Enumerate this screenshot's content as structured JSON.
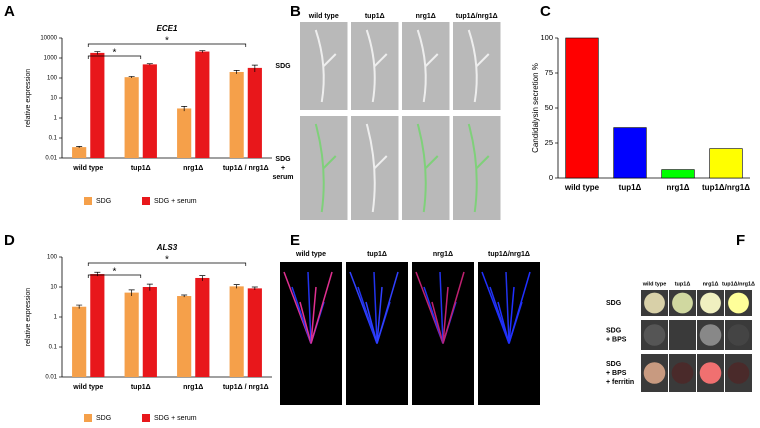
{
  "chart_data": [
    {
      "type": "bar",
      "panel": "A",
      "title": "ECE1",
      "ylabel": "relative expression",
      "log": true,
      "categories": [
        "wild type",
        "tup1Δ",
        "nrg1Δ",
        "tup1Δ / nrg1Δ"
      ],
      "series": [
        {
          "name": "SDG",
          "color": "#f5a04a",
          "values": [
            0.035,
            110,
            3,
            200
          ],
          "errors": [
            0.003,
            10,
            0.8,
            40
          ]
        },
        {
          "name": "SDG + serum",
          "color": "#e8171b",
          "values": [
            1800,
            480,
            2100,
            320
          ],
          "errors": [
            300,
            40,
            250,
            120
          ]
        }
      ],
      "ylim": [
        0.01,
        10000
      ],
      "yticks": [
        0.01,
        0.1,
        1,
        10,
        100,
        1000,
        10000
      ],
      "brackets": [
        {
          "label": "*",
          "categories": [
            "wild type",
            "tup1Δ"
          ]
        },
        {
          "label": "*",
          "categories": [
            "wild type",
            "tup1Δ / nrg1Δ"
          ]
        }
      ]
    },
    {
      "type": "bar",
      "panel": "C",
      "ylabel": "Candidalysin secretion %",
      "categories": [
        "wild type",
        "tup1Δ",
        "nrg1Δ",
        "tup1Δ/nrg1Δ"
      ],
      "values": [
        100,
        36,
        6,
        21
      ],
      "colors": [
        "#ff0000",
        "#0000ff",
        "#00ff00",
        "#ffff00"
      ],
      "ylim": [
        0,
        100
      ],
      "yticks": [
        0,
        25,
        50,
        75,
        100
      ]
    },
    {
      "type": "bar",
      "panel": "D",
      "title": "ALS3",
      "ylabel": "relative expression",
      "log": true,
      "categories": [
        "wild type",
        "tup1Δ",
        "nrg1Δ",
        "tup1Δ / nrg1Δ"
      ],
      "series": [
        {
          "name": "SDG",
          "color": "#f5a04a",
          "values": [
            2.2,
            6.5,
            5,
            10.5
          ],
          "errors": [
            0.3,
            1.5,
            0.4,
            1.5
          ]
        },
        {
          "name": "SDG + serum",
          "color": "#e8171b",
          "values": [
            27,
            10,
            20,
            9
          ],
          "errors": [
            4,
            2.5,
            4,
            1
          ]
        }
      ],
      "ylim": [
        0.01,
        100
      ],
      "yticks": [
        0.01,
        0.1,
        1,
        10,
        100
      ],
      "brackets": [
        {
          "label": "*",
          "categories": [
            "wild type",
            "tup1Δ"
          ]
        },
        {
          "label": "*",
          "categories": [
            "wild type",
            "tup1Δ / nrg1Δ"
          ]
        }
      ]
    }
  ],
  "image_panels": [
    {
      "panel": "B",
      "columns": [
        "wild type",
        "tup1Δ",
        "nrg1Δ",
        "tup1Δ/nrg1Δ"
      ],
      "rows": [
        [
          "SDG"
        ],
        [
          "SDG",
          "+",
          "serum"
        ]
      ]
    },
    {
      "panel": "E",
      "columns": [
        "wild type",
        "tup1Δ",
        "nrg1Δ",
        "tup1Δ/nrg1Δ"
      ],
      "rows": []
    },
    {
      "panel": "F",
      "columns": [
        "wild type",
        "tup1Δ",
        "nrg1Δ",
        "tup1Δ/nrg1Δ"
      ],
      "rows": [
        [
          "SDG"
        ],
        [
          "SDG",
          "+ BPS"
        ],
        [
          "SDG",
          "+ BPS",
          "+ ferritin"
        ]
      ]
    }
  ]
}
